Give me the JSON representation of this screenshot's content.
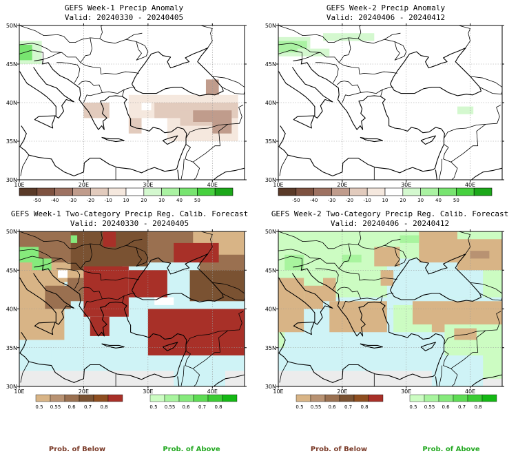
{
  "chart_data": [
    {
      "type": "heatmap",
      "title": "GEFS Week-1 Precip Anomaly",
      "subtitle": "Valid: 20240330 - 20240405",
      "x_ticks": [
        "10E",
        "20E",
        "30E",
        "40E"
      ],
      "y_ticks": [
        "30N",
        "35N",
        "40N",
        "45N",
        "50N"
      ],
      "xlim": [
        10,
        45
      ],
      "ylim": [
        30,
        50
      ],
      "grid": true,
      "colorbar": {
        "ticks": [
          "-50",
          "-40",
          "-30",
          "-20",
          "-10",
          "10",
          "20",
          "30",
          "40",
          "50"
        ],
        "colors": [
          "#5a3a28",
          "#7e5240",
          "#9e7262",
          "#c09c8c",
          "#e2cbbd",
          "#f5e8de",
          "#ffffff",
          "#d4f8cf",
          "#aaf2a2",
          "#78e470",
          "#46d03e",
          "#1ca81a"
        ]
      },
      "fields": [
        {
          "color": "#f5e8de",
          "cells": [
            [
              13,
              34,
              46,
              36
            ],
            [
              10,
              30,
              41,
              34
            ],
            [
              17,
              22,
              40,
              38
            ],
            [
              21,
              40,
              42,
              40
            ],
            [
              27,
              44,
              38,
              41
            ],
            [
              33,
              44,
              35,
              38
            ]
          ]
        },
        {
          "color": "#e2cbbd",
          "cells": [
            [
              31,
              40,
              38,
              40
            ],
            [
              35,
              43,
              37,
              39
            ],
            [
              38,
              44,
              38,
              40
            ],
            [
              20,
              24,
              38,
              40
            ],
            [
              27,
              29,
              36,
              38
            ]
          ]
        },
        {
          "color": "#c09c8c",
          "cells": [
            [
              37,
              43,
              37.5,
              39
            ],
            [
              40,
              43,
              36,
              37.5
            ],
            [
              39,
              41,
              41,
              43
            ]
          ]
        },
        {
          "color": "#d4f8cf",
          "cells": [
            [
              10,
              13.5,
              45,
              48
            ]
          ]
        },
        {
          "color": "#78e470",
          "cells": [
            [
              10,
              12,
              45.5,
              47.5
            ]
          ]
        },
        {
          "color": "#ffffff",
          "cells": [
            [
              29,
              30.5,
              39,
              40
            ],
            [
              20.5,
              22,
              42,
              43
            ]
          ]
        }
      ]
    },
    {
      "type": "heatmap",
      "title": "GEFS Week-2 Precip Anomaly",
      "subtitle": "Valid: 20240406 - 20240412",
      "x_ticks": [
        "10E",
        "20E",
        "30E",
        "40E"
      ],
      "y_ticks": [
        "30N",
        "35N",
        "40N",
        "45N",
        "50N"
      ],
      "xlim": [
        10,
        45
      ],
      "ylim": [
        30,
        50
      ],
      "grid": true,
      "colorbar": {
        "ticks": [
          "-50",
          "-40",
          "-30",
          "-20",
          "-10",
          "10",
          "20",
          "30",
          "40",
          "50"
        ],
        "colors": [
          "#5a3a28",
          "#7e5240",
          "#9e7262",
          "#c09c8c",
          "#e2cbbd",
          "#f5e8de",
          "#ffffff",
          "#d4f8cf",
          "#aaf2a2",
          "#78e470",
          "#46d03e",
          "#1ca81a"
        ]
      },
      "fields": [
        {
          "color": "#d4f8cf",
          "cells": [
            [
              10,
              15,
              47,
              48.5
            ],
            [
              10,
              18,
              46,
              47
            ],
            [
              17,
              25,
              48,
              49
            ],
            [
              38,
              40.5,
              38.5,
              39.5
            ]
          ]
        },
        {
          "color": "#aaf2a2",
          "cells": [
            [
              10,
              13,
              46.5,
              48
            ],
            [
              13,
              14.5,
              47,
              48
            ]
          ]
        }
      ]
    },
    {
      "type": "heatmap",
      "title": "GEFS Week-1 Two-Category Precip Reg. Calib. Forecast",
      "subtitle": "Valid: 20240330 - 20240405",
      "x_ticks": [
        "10E",
        "20E",
        "30E",
        "40E"
      ],
      "y_ticks": [
        "30N",
        "35N",
        "40N",
        "45N",
        "50N"
      ],
      "xlim": [
        10,
        45
      ],
      "ylim": [
        30,
        50
      ],
      "grid": true,
      "colorbar_below": {
        "ticks": [
          "0.5",
          "0.55",
          "0.6",
          "0.7",
          "0.8"
        ],
        "colors": [
          "#d8b486",
          "#b89272",
          "#9a7050",
          "#7a5232",
          "#8e4e20",
          "#a83028"
        ]
      },
      "colorbar_above": {
        "ticks": [
          "0.5",
          "0.55",
          "0.6",
          "0.7",
          "0.8"
        ],
        "colors": [
          "#ccfcc2",
          "#a8f49e",
          "#86ea7c",
          "#5edc54",
          "#3ccc34",
          "#14b814"
        ]
      },
      "fields": [
        {
          "color": "#cff3f6",
          "cells": [
            [
              10,
              45,
              30,
              50
            ]
          ]
        },
        {
          "color": "#ececec",
          "cells": [
            [
              10,
              45,
              30,
              32
            ]
          ]
        },
        {
          "color": "#cff3f6",
          "cells": [
            [
              15,
              36,
              33,
              37
            ],
            [
              11,
              20,
              35,
              41
            ],
            [
              27,
              42,
              41.5,
              46.5
            ],
            [
              16,
              18,
              41.5,
              44.5
            ]
          ]
        },
        {
          "color": "#d8b486",
          "cells": [
            [
              10,
              17,
              36,
              44.5
            ],
            [
              13,
              16,
              40.5,
              42
            ],
            [
              10,
              20,
              43.5,
              46
            ],
            [
              34,
              45,
              46.5,
              50
            ]
          ]
        },
        {
          "color": "#9a7050",
          "cells": [
            [
              10,
              26,
              46,
              50
            ],
            [
              14,
              18,
              40,
              43
            ],
            [
              17.5,
              20,
              41,
              44
            ],
            [
              30,
              37,
              46,
              50
            ],
            [
              38,
              45,
              44,
              47
            ]
          ]
        },
        {
          "color": "#7a5232",
          "cells": [
            [
              18,
              26,
              45,
              50
            ],
            [
              25,
              30,
              45.5,
              50
            ],
            [
              36.5,
              45,
              41,
              45
            ]
          ]
        },
        {
          "color": "#a83028",
          "cells": [
            [
              20,
              27,
              39,
              45.5
            ],
            [
              21,
              24,
              36.5,
              39
            ],
            [
              27,
              33,
              41.5,
              45
            ],
            [
              30,
              45,
              34,
              40
            ],
            [
              34,
              41,
              46,
              48.5
            ],
            [
              23,
              25,
              48,
              50
            ]
          ]
        },
        {
          "color": "#cff3f6",
          "cells": [
            [
              34,
              42,
              30,
              34
            ]
          ]
        },
        {
          "color": "#86ea7c",
          "cells": [
            [
              10,
              13,
              46,
              48
            ],
            [
              12,
              15,
              45,
              46.5
            ],
            [
              18,
              19,
              48.5,
              49.5
            ]
          ]
        },
        {
          "color": "#ffffff",
          "cells": [
            [
              31,
              34,
              40.5,
              41.5
            ],
            [
              16,
              17.5,
              44,
              45
            ]
          ]
        }
      ]
    },
    {
      "type": "heatmap",
      "title": "GEFS Week-2 Two-Category Precip Reg. Calib. Forecast",
      "subtitle": "Valid: 20240406 - 20240412",
      "x_ticks": [
        "10E",
        "20E",
        "30E",
        "40E"
      ],
      "y_ticks": [
        "30N",
        "35N",
        "40N",
        "45N",
        "50N"
      ],
      "xlim": [
        10,
        45
      ],
      "ylim": [
        30,
        50
      ],
      "grid": true,
      "colorbar_below": {
        "ticks": [
          "0.5",
          "0.55",
          "0.6",
          "0.7",
          "0.8"
        ],
        "colors": [
          "#d8b486",
          "#b89272",
          "#9a7050",
          "#7a5232",
          "#8e4e20",
          "#a83028"
        ]
      },
      "colorbar_above": {
        "ticks": [
          "0.5",
          "0.55",
          "0.6",
          "0.7",
          "0.8"
        ],
        "colors": [
          "#ccfcc2",
          "#a8f49e",
          "#86ea7c",
          "#5edc54",
          "#3ccc34",
          "#14b814"
        ]
      },
      "fields": [
        {
          "color": "#cff3f6",
          "cells": [
            [
              10,
              45,
              30,
              50
            ]
          ]
        },
        {
          "color": "#ececec",
          "cells": [
            [
              10,
              45,
              30,
              32
            ]
          ]
        },
        {
          "color": "#ccfcc2",
          "cells": [
            [
              10,
              45,
              41.5,
              50
            ],
            [
              10,
              15,
              35,
              41
            ],
            [
              28,
              45,
              34,
              40.5
            ],
            [
              42,
              45,
              31,
              34
            ]
          ]
        },
        {
          "color": "#cff3f6",
          "cells": [
            [
              15,
              36,
              32,
              37
            ],
            [
              11,
              18,
              35,
              41
            ],
            [
              27,
              42,
              41.5,
              46.5
            ]
          ]
        },
        {
          "color": "#d8b486",
          "cells": [
            [
              10,
              14,
              37,
              44
            ],
            [
              14,
              17,
              40,
              43
            ],
            [
              17,
              19,
              41,
              44
            ],
            [
              18,
              27,
              37,
              41
            ],
            [
              25,
              29,
              45.5,
              48
            ],
            [
              32,
              38,
              46,
              50
            ],
            [
              38,
              45,
              45,
              49
            ],
            [
              31,
              45,
              38,
              41
            ],
            [
              34,
              36,
              37,
              38.5
            ],
            [
              37.5,
              41,
              36,
              37.5
            ],
            [
              26,
              28,
              43,
              45
            ]
          ]
        },
        {
          "color": "#b89272",
          "cells": [
            [
              40,
              43,
              46.5,
              47.5
            ]
          ]
        },
        {
          "color": "#a8f49e",
          "cells": [
            [
              11,
              14,
              45,
              47
            ],
            [
              29,
              32,
              48.5,
              49.5
            ],
            [
              20,
              23,
              46,
              47
            ]
          ]
        },
        {
          "color": "#cff3f6",
          "cells": [
            [
              34,
              42,
              30,
              33.5
            ]
          ]
        }
      ]
    }
  ],
  "legend": {
    "below_label": "Prob. of Below",
    "above_label": "Prob. of Above",
    "below_color": "#7a3a28",
    "above_color": "#22a820"
  }
}
